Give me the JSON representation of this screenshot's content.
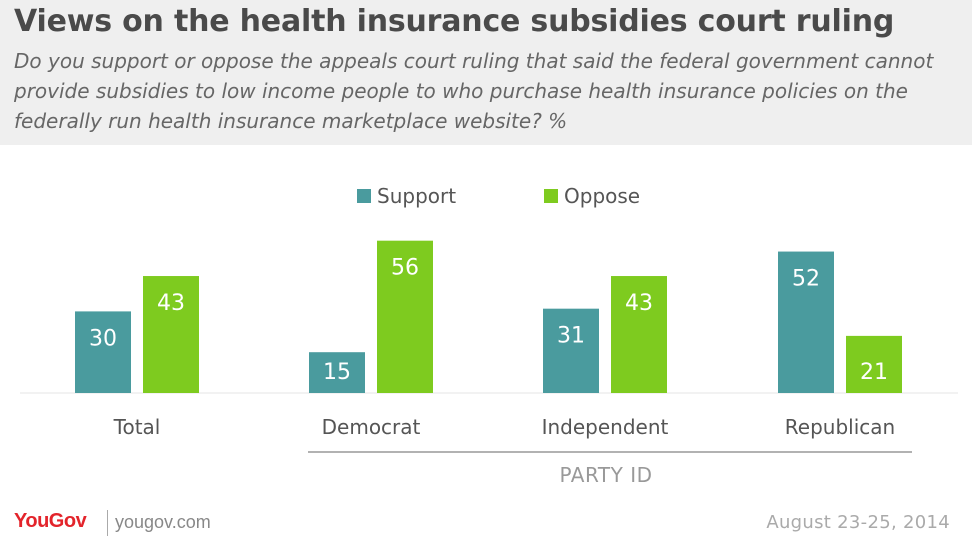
{
  "header": {
    "title": "Views on the health insurance subsidies court ruling",
    "subtitle": "Do you support or oppose the appeals court ruling that said the federal government cannot provide subsidies to low income people to who purchase health insurance policies on the federally run health insurance marketplace website? %"
  },
  "footer": {
    "logo": "YouGov",
    "url": "yougov.com",
    "date": "August 23-25, 2014"
  },
  "chart_data": {
    "type": "bar",
    "categories": [
      "Total",
      "Democrat",
      "Independent",
      "Republican"
    ],
    "group_label": "PARTY ID",
    "series": [
      {
        "name": "Support",
        "values": [
          30,
          15,
          31,
          52
        ],
        "color": "#4a9b9e"
      },
      {
        "name": "Oppose",
        "values": [
          43,
          56,
          43,
          21
        ],
        "color": "#7ecb1f"
      }
    ],
    "ylim": [
      0,
      60
    ],
    "legend": "top-center",
    "grid": false
  }
}
